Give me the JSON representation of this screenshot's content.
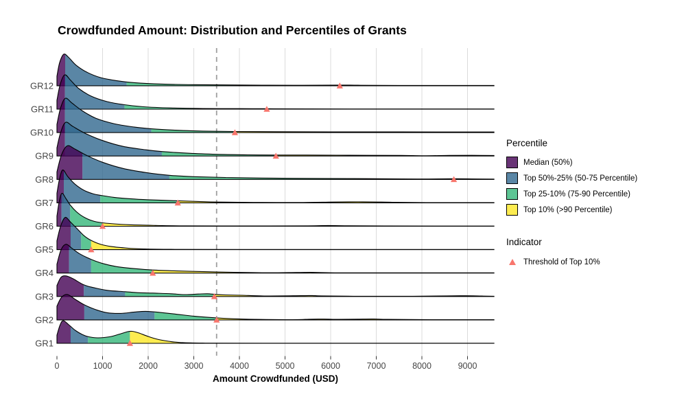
{
  "chart_data": {
    "type": "ridgeline",
    "title": "Crowdfunded Amount: Distribution and Percentiles of Grants",
    "xlabel": "Amount Crowdfunded (USD)",
    "x_ticks": [
      0,
      1000,
      2000,
      3000,
      4000,
      5000,
      6000,
      7000,
      8000,
      9000
    ],
    "x_max_value": 9580,
    "xlim": [
      0,
      9580
    ],
    "grid": "vertical-only",
    "dashed_reference_line_x": 3500,
    "groups": [
      {
        "label": "GR1",
        "percentiles": {
          "p50": 300,
          "p75": 680,
          "p90": 1600
        },
        "top10_threshold": 1600,
        "density_profile": [
          [
            0,
            12
          ],
          [
            70,
            27
          ],
          [
            140,
            33
          ],
          [
            260,
            27
          ],
          [
            400,
            19
          ],
          [
            550,
            13
          ],
          [
            700,
            9.5
          ],
          [
            900,
            8
          ],
          [
            1150,
            9.5
          ],
          [
            1350,
            13
          ],
          [
            1550,
            17
          ],
          [
            1650,
            17.5
          ],
          [
            1800,
            15
          ],
          [
            2000,
            10
          ],
          [
            2200,
            6
          ],
          [
            2450,
            3
          ],
          [
            2700,
            1.2
          ],
          [
            3200,
            0.4
          ],
          [
            5000,
            0.25
          ],
          [
            9580,
            0.25
          ]
        ]
      },
      {
        "label": "GR2",
        "percentiles": {
          "p50": 600,
          "p75": 2140,
          "p90": 3500
        },
        "top10_threshold": 3500,
        "density_profile": [
          [
            0,
            20
          ],
          [
            100,
            33
          ],
          [
            230,
            37
          ],
          [
            400,
            30
          ],
          [
            600,
            22
          ],
          [
            850,
            15
          ],
          [
            1100,
            10.5
          ],
          [
            1400,
            9.5
          ],
          [
            1700,
            11.5
          ],
          [
            1950,
            12.5
          ],
          [
            2250,
            11
          ],
          [
            2600,
            8.5
          ],
          [
            3000,
            5.5
          ],
          [
            3500,
            3
          ],
          [
            3970,
            1.5
          ],
          [
            4600,
            0.6
          ],
          [
            5300,
            0.5
          ],
          [
            5520,
            1
          ],
          [
            5850,
            1.2
          ],
          [
            6170,
            0.8
          ],
          [
            6600,
            1.1
          ],
          [
            6950,
            1.3
          ],
          [
            7250,
            0.8
          ],
          [
            8200,
            0.4
          ],
          [
            9580,
            0.4
          ]
        ]
      },
      {
        "label": "GR3",
        "percentiles": {
          "p50": 590,
          "p75": 1495,
          "p90": 3450
        },
        "top10_threshold": 3450,
        "density_profile": [
          [
            0,
            16
          ],
          [
            90,
            28
          ],
          [
            200,
            30
          ],
          [
            350,
            26
          ],
          [
            590,
            17
          ],
          [
            800,
            13
          ],
          [
            1100,
            9
          ],
          [
            1495,
            7
          ],
          [
            1800,
            5.5
          ],
          [
            2100,
            5
          ],
          [
            2500,
            4
          ],
          [
            2800,
            2.8
          ],
          [
            3100,
            3.6
          ],
          [
            3300,
            4
          ],
          [
            3485,
            3
          ],
          [
            3700,
            2.3
          ],
          [
            4060,
            1.8
          ],
          [
            4600,
            0.8
          ],
          [
            5350,
            1.2
          ],
          [
            5600,
            1.4
          ],
          [
            5800,
            0.9
          ],
          [
            6500,
            0.4
          ],
          [
            7800,
            0.4
          ],
          [
            8550,
            0.9
          ],
          [
            8950,
            1.1
          ],
          [
            9320,
            0.7
          ],
          [
            9580,
            0.4
          ]
        ]
      },
      {
        "label": "GR4",
        "percentiles": {
          "p50": 265,
          "p75": 750,
          "p90": 2100
        },
        "top10_threshold": 2100,
        "density_profile": [
          [
            0,
            13
          ],
          [
            90,
            34
          ],
          [
            200,
            42
          ],
          [
            330,
            36
          ],
          [
            500,
            28
          ],
          [
            750,
            20
          ],
          [
            1000,
            14
          ],
          [
            1300,
            9.5
          ],
          [
            1700,
            6.5
          ],
          [
            2100,
            4.5
          ],
          [
            2700,
            3
          ],
          [
            3300,
            2
          ],
          [
            3870,
            1.2
          ],
          [
            4600,
            0.5
          ],
          [
            5250,
            0.9
          ],
          [
            5550,
            1.2
          ],
          [
            5800,
            0.8
          ],
          [
            6500,
            0.35
          ],
          [
            9580,
            0.35
          ]
        ]
      },
      {
        "label": "GR5",
        "percentiles": {
          "p50": 300,
          "p75": 530,
          "p90": 750
        },
        "top10_threshold": 750,
        "density_profile": [
          [
            0,
            13
          ],
          [
            80,
            34
          ],
          [
            180,
            47
          ],
          [
            300,
            40
          ],
          [
            450,
            30
          ],
          [
            600,
            20
          ],
          [
            750,
            13.5
          ],
          [
            950,
            8
          ],
          [
            1200,
            4.5
          ],
          [
            1550,
            2.2
          ],
          [
            1900,
            1.1
          ],
          [
            2500,
            0.5
          ],
          [
            4000,
            0.3
          ],
          [
            9580,
            0.3
          ]
        ]
      },
      {
        "label": "GR6",
        "percentiles": {
          "p50": 100,
          "p75": 290,
          "p90": 1000
        },
        "top10_threshold": 1000,
        "density_profile": [
          [
            0,
            15
          ],
          [
            50,
            36
          ],
          [
            110,
            48
          ],
          [
            200,
            40
          ],
          [
            290,
            31
          ],
          [
            430,
            21
          ],
          [
            600,
            13
          ],
          [
            800,
            7.5
          ],
          [
            1000,
            5
          ],
          [
            1250,
            3.5
          ],
          [
            1600,
            2.2
          ],
          [
            2160,
            1.2
          ],
          [
            2800,
            0.6
          ],
          [
            4200,
            0.4
          ],
          [
            5500,
            0.6
          ],
          [
            5950,
            1.1
          ],
          [
            6300,
            0.7
          ],
          [
            7200,
            0.35
          ],
          [
            9580,
            0.3
          ]
        ]
      },
      {
        "label": "GR7",
        "percentiles": {
          "p50": 150,
          "p75": 950,
          "p90": 2650
        },
        "top10_threshold": 2650,
        "density_profile": [
          [
            0,
            14
          ],
          [
            60,
            36
          ],
          [
            130,
            48
          ],
          [
            240,
            38
          ],
          [
            400,
            27
          ],
          [
            600,
            18
          ],
          [
            800,
            13
          ],
          [
            950,
            11
          ],
          [
            1250,
            8
          ],
          [
            1600,
            6
          ],
          [
            2000,
            4.5
          ],
          [
            2650,
            3
          ],
          [
            3100,
            2
          ],
          [
            3520,
            1.2
          ],
          [
            4300,
            0.6
          ],
          [
            5400,
            0.5
          ],
          [
            6050,
            1.2
          ],
          [
            6700,
            1.5
          ],
          [
            7350,
            0.9
          ],
          [
            8100,
            0.4
          ],
          [
            9580,
            0.4
          ]
        ]
      },
      {
        "label": "GR8",
        "percentiles": {
          "p50": 560,
          "p75": 2465,
          "p90": 8700
        },
        "top10_threshold": 8700,
        "density_profile": [
          [
            0,
            11
          ],
          [
            100,
            36
          ],
          [
            230,
            49
          ],
          [
            400,
            44
          ],
          [
            650,
            35
          ],
          [
            1000,
            25
          ],
          [
            1450,
            16
          ],
          [
            1950,
            10
          ],
          [
            2465,
            6
          ],
          [
            3000,
            4
          ],
          [
            3700,
            2.8
          ],
          [
            4500,
            2
          ],
          [
            5500,
            1.5
          ],
          [
            6500,
            1.2
          ],
          [
            7050,
            1
          ],
          [
            7900,
            0.6
          ],
          [
            8700,
            1
          ],
          [
            9100,
            0.8
          ],
          [
            9580,
            0.5
          ]
        ]
      },
      {
        "label": "GR9",
        "percentiles": {
          "p50": 175,
          "p75": 2300,
          "p90": 4800
        },
        "top10_threshold": 4800,
        "density_profile": [
          [
            0,
            12
          ],
          [
            80,
            34
          ],
          [
            190,
            49
          ],
          [
            350,
            43
          ],
          [
            620,
            33
          ],
          [
            980,
            23
          ],
          [
            1450,
            14
          ],
          [
            1950,
            9
          ],
          [
            2300,
            6.5
          ],
          [
            2900,
            4
          ],
          [
            3500,
            2.5
          ],
          [
            4200,
            1.7
          ],
          [
            4800,
            1.4
          ],
          [
            5800,
            1.3
          ],
          [
            6800,
            1
          ],
          [
            7550,
            0.9
          ],
          [
            8050,
            0.45
          ],
          [
            8600,
            0.9
          ],
          [
            9100,
            1
          ],
          [
            9580,
            0.8
          ]
        ]
      },
      {
        "label": "GR10",
        "percentiles": {
          "p50": 175,
          "p75": 2070,
          "p90": 3900
        },
        "top10_threshold": 3900,
        "density_profile": [
          [
            0,
            12
          ],
          [
            80,
            36
          ],
          [
            185,
            50
          ],
          [
            330,
            43
          ],
          [
            550,
            32
          ],
          [
            850,
            21
          ],
          [
            1250,
            13
          ],
          [
            1700,
            8
          ],
          [
            2070,
            5.5
          ],
          [
            2600,
            3.5
          ],
          [
            3200,
            2.2
          ],
          [
            3900,
            1.6
          ],
          [
            4800,
            1.3
          ],
          [
            6000,
            1.1
          ],
          [
            7500,
            1
          ],
          [
            9580,
            0.9
          ]
        ]
      },
      {
        "label": "GR11",
        "percentiles": {
          "p50": 175,
          "p75": 1480,
          "p90": 4600
        },
        "top10_threshold": 4600,
        "density_profile": [
          [
            0,
            13
          ],
          [
            70,
            36
          ],
          [
            170,
            50
          ],
          [
            300,
            42
          ],
          [
            480,
            30
          ],
          [
            750,
            19
          ],
          [
            1100,
            11
          ],
          [
            1480,
            6.5
          ],
          [
            1900,
            3.5
          ],
          [
            2500,
            1.8
          ],
          [
            3200,
            1
          ],
          [
            4000,
            0.8
          ],
          [
            4600,
            0.7
          ],
          [
            5500,
            0.4
          ],
          [
            9580,
            0.35
          ]
        ]
      },
      {
        "label": "GR12",
        "percentiles": {
          "p50": 180,
          "p75": 1530,
          "p90": 6200
        },
        "top10_threshold": 6200,
        "density_profile": [
          [
            0,
            14
          ],
          [
            60,
            34
          ],
          [
            150,
            46
          ],
          [
            260,
            41
          ],
          [
            420,
            30
          ],
          [
            650,
            20
          ],
          [
            950,
            12
          ],
          [
            1300,
            7.5
          ],
          [
            1700,
            4.5
          ],
          [
            2300,
            2.5
          ],
          [
            3000,
            1.6
          ],
          [
            4000,
            1.1
          ],
          [
            5200,
            0.7
          ],
          [
            6200,
            1
          ],
          [
            6600,
            0.8
          ],
          [
            7500,
            0.5
          ],
          [
            9580,
            0.5
          ]
        ]
      }
    ]
  },
  "legend": {
    "percentile_title": "Percentile",
    "percentile_items": [
      {
        "label": "Median (50%)",
        "color": "#440154"
      },
      {
        "label": "Top 50%-25% (50-75 Percentile)",
        "color": "#31688E"
      },
      {
        "label": "Top 25-10% (75-90 Percentile)",
        "color": "#35B779"
      },
      {
        "label": "Top 10% (>90 Percentile)",
        "color": "#FDE725"
      }
    ],
    "indicator_title": "Indicator",
    "indicator_label": "Threshold of Top 10%",
    "indicator_color": "#F8766D"
  },
  "style_colors": {
    "fill_opacity": 0.8,
    "segment_colors": [
      "#440154",
      "#31688E",
      "#35B779",
      "#FDE725"
    ],
    "triangle_color": "#F8766D",
    "gridline_color": "#DBDBDB",
    "dashed_line_color": "#9E9E9E",
    "axis_text_color": "#444444",
    "outline_color": "#000000"
  }
}
